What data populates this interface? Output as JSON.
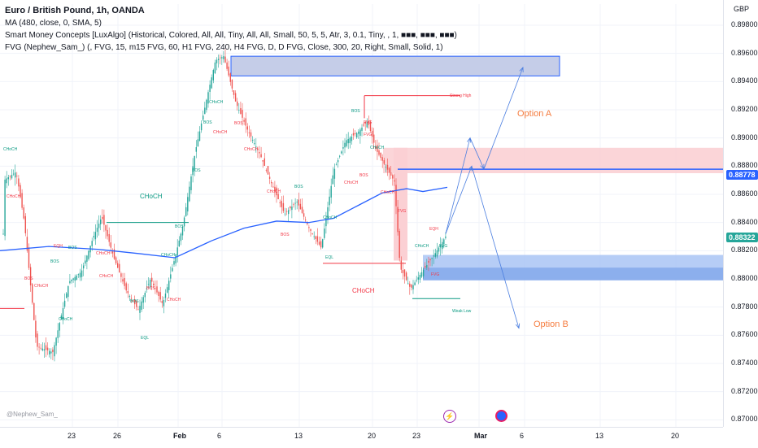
{
  "legend": {
    "title": "Euro / British Pound, 1h, OANDA",
    "lines": [
      "MA (480, close, 0, SMA, 5)",
      "Smart Money Concepts [LuxAlgo] (Historical, Colored, All, All, Tiny, All, All, Small, 50, 5, 5, Atr, 3, 0.1, Tiny, , 1, ■■■, ■■■, ■■■)",
      "FVG (Nephew_Sam_) (, FVG, 15, m15 FVG, 60, H1 FVG, 240, H4 FVG, D, D FVG, Close, 300, 20, Right, Small, Solid, 1)"
    ]
  },
  "currency": "GBP",
  "watermark": "@Nephew_Sam_",
  "price_ticks": [
    "0.89800",
    "0.89600",
    "0.89400",
    "0.89200",
    "0.89000",
    "0.88800",
    "0.88600",
    "0.88400",
    "0.88200",
    "0.88000",
    "0.87800",
    "0.87600",
    "0.87400",
    "0.87200",
    "0.87000"
  ],
  "time_ticks": [
    "23",
    "26",
    "Feb",
    "6",
    "13",
    "20",
    "23",
    "Mar",
    "6",
    "13",
    "20"
  ],
  "price_tags": {
    "blue_line": "0.88778",
    "last_price": "0.88322"
  },
  "annotations": {
    "option_a": "Option A",
    "option_b": "Option B",
    "choch_left": "CHoCH",
    "choch_mid": "CHoCH",
    "strong_high": "Strong High",
    "weak_low": "Weak Low",
    "fvg": "FVG"
  },
  "smc_labels": [
    "CHoCH",
    "CHoCH",
    "BOS",
    "BOS",
    "EQH",
    "BOS",
    "CHoCH",
    "CHoCH",
    "CHoCH",
    "CHoCH",
    "EQL",
    "BOS",
    "BOS",
    "CHoCH",
    "CHoCH",
    "BOS",
    "BOS",
    "BOS",
    "CHoCH",
    "CHoCH",
    "BOS",
    "CHoCH",
    "CHoCH",
    "BOS",
    "BOS",
    "EQL",
    "CHoCH",
    "CHoCH",
    "BOS",
    "BOS",
    "CHoCH",
    "FVG",
    "FVG",
    "CHoCH",
    "CHoCH",
    "EQH",
    "FVG",
    "FVG"
  ],
  "colors": {
    "bull": "#26a69a",
    "bear": "#ef5350",
    "ma": "#2962ff",
    "supply_zone": "#f7b7be",
    "demand_zone": "#8fb4f5",
    "accent_orange": "#f57c3f",
    "forecast_arrow": "#4a7ee0"
  },
  "icons": [
    "lightning-icon",
    "earnings-icon"
  ],
  "chart_data": {
    "type": "candlestick",
    "symbol": "EURGBP",
    "timeframe": "1h",
    "ylim": [
      0.8695,
      0.8995
    ],
    "series": [
      {
        "name": "MA (480, close, 0, SMA, 5)",
        "x": [
          "19 Jan",
          "23 Jan",
          "26 Jan",
          "Feb",
          "6 Feb",
          "13 Feb",
          "17 Feb",
          "20 Feb",
          "23 Feb",
          "24 Feb"
        ],
        "values": [
          0.8822,
          0.8821,
          0.8823,
          0.8815,
          0.8833,
          0.8843,
          0.8838,
          0.8855,
          0.8863,
          0.886
        ]
      },
      {
        "name": "price",
        "x": [
          "19 Jan",
          "20 Jan",
          "23 Jan",
          "24 Jan",
          "25 Jan",
          "26 Jan",
          "27 Jan",
          "30 Jan",
          "31 Jan",
          "Feb",
          "2 Feb",
          "3 Feb",
          "6 Feb",
          "7 Feb",
          "8 Feb",
          "9 Feb",
          "10 Feb",
          "13 Feb",
          "14 Feb",
          "15 Feb",
          "16 Feb",
          "17 Feb",
          "20 Feb",
          "21 Feb",
          "22 Feb",
          "23 Feb",
          "24 Feb"
        ],
        "values": [
          0.8876,
          0.8818,
          0.8745,
          0.8789,
          0.8814,
          0.8844,
          0.8794,
          0.8782,
          0.877,
          0.8808,
          0.887,
          0.8948,
          0.8968,
          0.8917,
          0.8884,
          0.8866,
          0.8852,
          0.883,
          0.8819,
          0.8838,
          0.8882,
          0.891,
          0.8888,
          0.886,
          0.8793,
          0.8812,
          0.8832
        ]
      }
    ],
    "zones": [
      {
        "type": "supply",
        "from": 0.8944,
        "to": 0.8958
      },
      {
        "type": "supply",
        "from": 0.8875,
        "to": 0.8893
      },
      {
        "type": "demand",
        "from": 0.8799,
        "to": 0.8817
      }
    ],
    "levels": [
      0.88778,
      0.893,
      0.884,
      0.882,
      0.8811,
      0.8786
    ],
    "last_price": 0.88322,
    "forecast": [
      {
        "name": "Option A",
        "path": [
          0.8832,
          0.89,
          0.8878,
          0.895
        ]
      },
      {
        "name": "Option B",
        "path": [
          0.8832,
          0.888,
          0.8765
        ]
      }
    ]
  }
}
